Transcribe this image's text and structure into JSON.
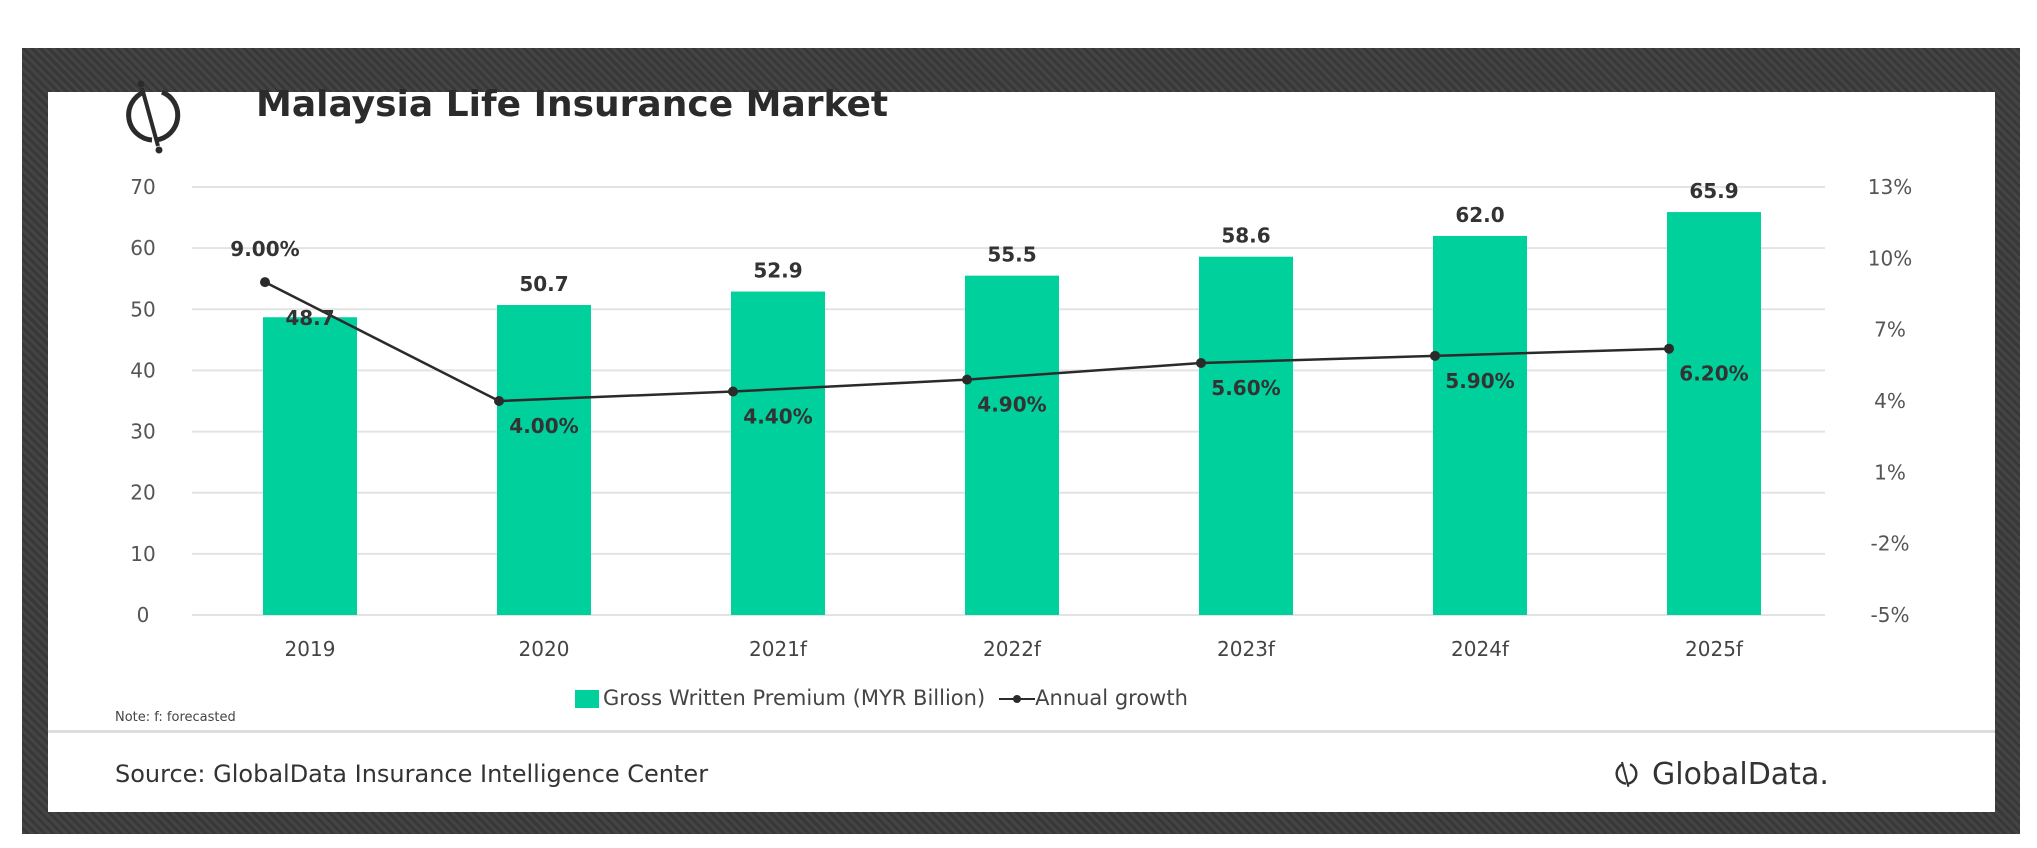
{
  "chart_data": {
    "type": "bar",
    "title": "Malaysia Life Insurance Market",
    "categories": [
      "2019",
      "2020",
      "2021f",
      "2022f",
      "2023f",
      "2024f",
      "2025f"
    ],
    "series": [
      {
        "name": "Gross Written Premium (MYR Billion)",
        "type": "bar",
        "axis": "left",
        "values": [
          48.7,
          50.7,
          52.9,
          55.5,
          58.6,
          62.0,
          65.9
        ],
        "labels": [
          "48.7",
          "50.7",
          "52.9",
          "55.5",
          "58.6",
          "62.0",
          "65.9"
        ],
        "color": "#00d09c"
      },
      {
        "name": "Annual growth",
        "type": "line",
        "axis": "right",
        "values": [
          9.0,
          4.0,
          4.4,
          4.9,
          5.6,
          5.9,
          6.2
        ],
        "labels": [
          "9.00%",
          "4.00%",
          "4.40%",
          "4.90%",
          "5.60%",
          "5.90%",
          "6.20%"
        ],
        "color": "#2b2b2b"
      }
    ],
    "y_left": {
      "ylim": [
        0,
        70
      ],
      "ticks": [
        "0",
        "10",
        "20",
        "30",
        "40",
        "50",
        "60",
        "70"
      ]
    },
    "y_right": {
      "ylim": [
        -5,
        13
      ],
      "ticks": [
        "-5%",
        "-2%",
        "1%",
        "4%",
        "7%",
        "10%",
        "13%"
      ]
    },
    "grid": true,
    "legend": "bottom-center",
    "note": "Note: f: forecasted",
    "source": "Source: GlobalData Insurance Intelligence Center"
  },
  "brand": {
    "name": "GlobalData.",
    "icon": "globaldata-logo-icon"
  }
}
